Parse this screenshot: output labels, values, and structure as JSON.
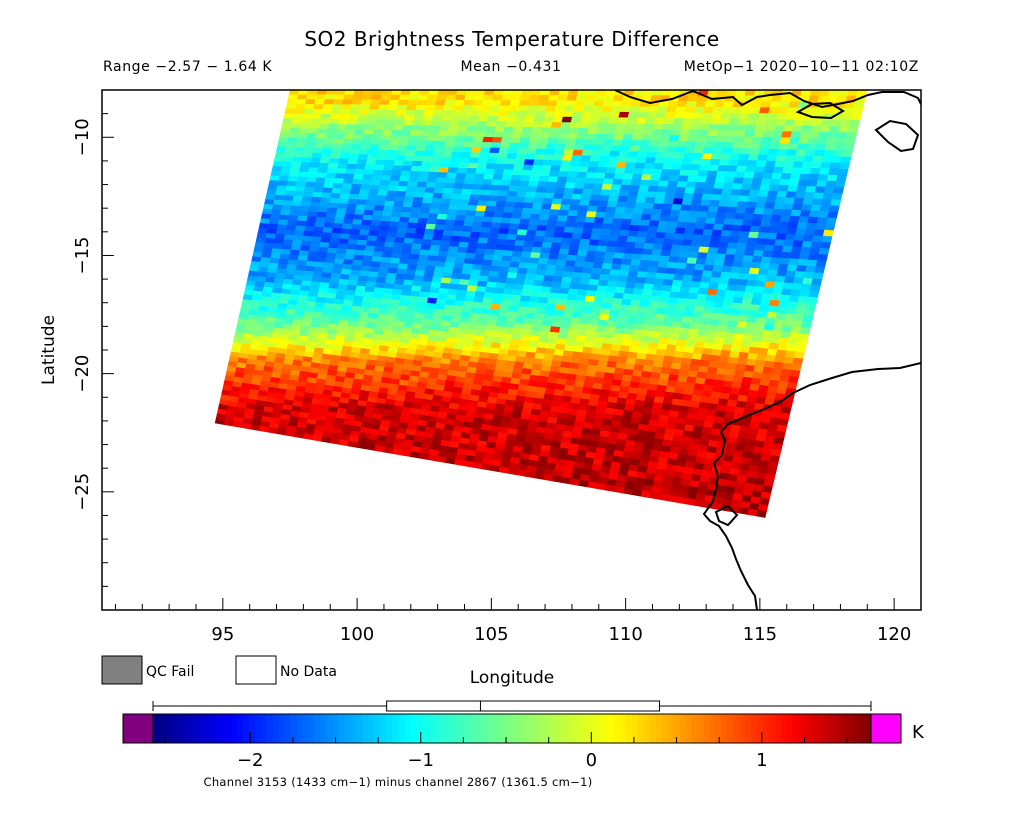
{
  "chart_data": {
    "type": "heatmap",
    "title": "SO2 Brightness Temperature Difference",
    "range_text": "Range −2.57 − 1.64 K",
    "mean_text": "Mean −0.431",
    "satellite_text": "MetOp−1 2020−10−11 02:10Z",
    "xlabel": "Longitude",
    "ylabel": "Latitude",
    "xlim": [
      90.5,
      121
    ],
    "ylim": [
      -30,
      -8
    ],
    "x_ticks": [
      95,
      100,
      105,
      110,
      115,
      120
    ],
    "y_ticks": [
      -10,
      -15,
      -20,
      -25
    ],
    "x_tick_labels": [
      "95",
      "100",
      "105",
      "110",
      "115",
      "120"
    ],
    "y_tick_labels": [
      "−10",
      "−15",
      "−20",
      "−25"
    ],
    "swath_corners_lonlat": {
      "top_left": [
        97.5,
        -8
      ],
      "top_right": [
        119,
        -8
      ],
      "bottom_right": [
        115.2,
        -26.1
      ],
      "bottom_left": [
        94.7,
        -22.1
      ]
    },
    "bands_by_latitude": [
      {
        "lat": -8.5,
        "value": 0.2
      },
      {
        "lat": -11,
        "value": -1.0
      },
      {
        "lat": -14,
        "value": -1.6
      },
      {
        "lat": -16,
        "value": -1.3
      },
      {
        "lat": -18,
        "value": -0.5
      },
      {
        "lat": -19.5,
        "value": 0.6
      },
      {
        "lat": -21.5,
        "value": 1.2
      },
      {
        "lat": -24,
        "value": 1.25
      },
      {
        "lat": -26,
        "value": 1.3
      }
    ],
    "colorbar": {
      "unit": "K",
      "ticks": [
        -2,
        -1,
        0,
        1
      ],
      "tick_labels": [
        "−2",
        "−1",
        "0",
        "1"
      ],
      "range": [
        -2.57,
        1.64
      ],
      "colors": [
        "#800080",
        "#00007f",
        "#0000ff",
        "#007fff",
        "#00ffff",
        "#7fff7f",
        "#ffff00",
        "#ff7f00",
        "#ff0000",
        "#7f0000",
        "#ff00ff"
      ],
      "boxplot": {
        "min": -2.57,
        "q1": -1.2,
        "median": -0.65,
        "q3": 0.4,
        "max": 1.64
      }
    },
    "legend": [
      {
        "label": "QC Fail",
        "color": "#808080"
      },
      {
        "label": "No Data",
        "color": "#ffffff"
      }
    ],
    "footnote": "Channel 3153 (1433 cm−1) minus channel 2867 (1361.5 cm−1)"
  }
}
